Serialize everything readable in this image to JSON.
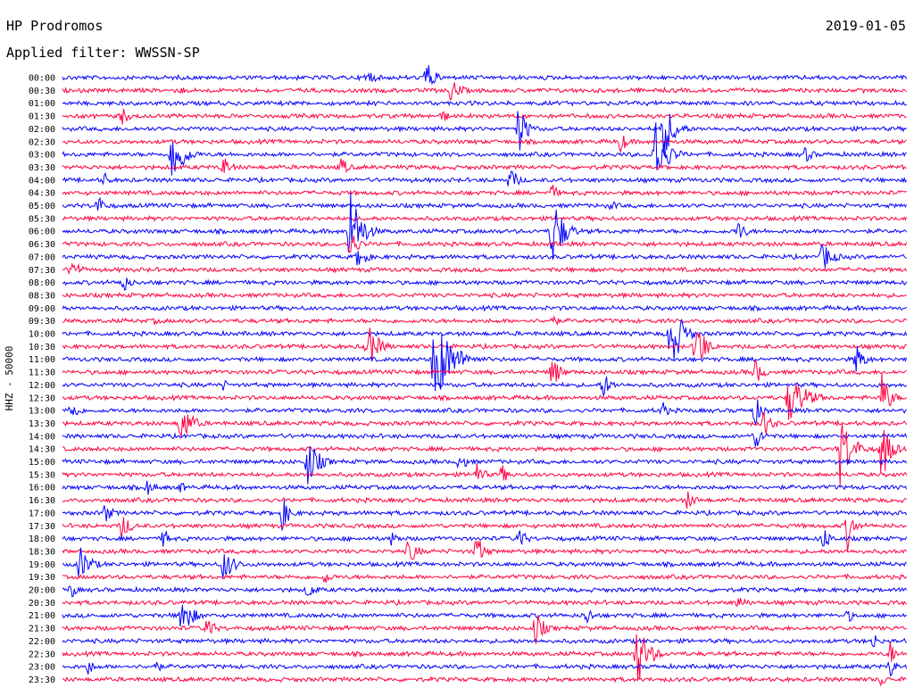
{
  "header": {
    "station": "HP Prodromos",
    "date": "2019-01-05",
    "filter_label": "Applied filter: WWSSN-SP"
  },
  "chart_data": {
    "type": "helicorder",
    "channel_label": "HHZ - 50000",
    "row_labels": [
      "00:00",
      "00:30",
      "01:00",
      "01:30",
      "02:00",
      "02:30",
      "03:00",
      "03:30",
      "04:00",
      "04:30",
      "05:00",
      "05:30",
      "06:00",
      "06:30",
      "07:00",
      "07:30",
      "08:00",
      "08:30",
      "09:00",
      "09:30",
      "10:00",
      "10:30",
      "11:00",
      "11:30",
      "12:00",
      "12:30",
      "13:00",
      "13:30",
      "14:00",
      "14:30",
      "15:00",
      "15:30",
      "16:00",
      "16:30",
      "17:00",
      "17:30",
      "18:00",
      "18:30",
      "19:00",
      "19:30",
      "20:00",
      "20:30",
      "21:00",
      "21:30",
      "22:00",
      "22:30",
      "23:00",
      "23:30"
    ],
    "trace_colors": [
      "#0000ff",
      "#ff0040"
    ],
    "events": [
      {
        "row": 0,
        "pos": 0.36,
        "amp": 12,
        "len": 0.03
      },
      {
        "row": 0,
        "pos": 0.43,
        "amp": 22,
        "len": 0.03
      },
      {
        "row": 1,
        "pos": 0.46,
        "amp": 14,
        "len": 0.04
      },
      {
        "row": 1,
        "pos": 0.14,
        "amp": 6,
        "len": 0.02
      },
      {
        "row": 3,
        "pos": 0.07,
        "amp": 12,
        "len": 0.03
      },
      {
        "row": 3,
        "pos": 0.45,
        "amp": 8,
        "len": 0.03
      },
      {
        "row": 4,
        "pos": 0.54,
        "amp": 30,
        "len": 0.03
      },
      {
        "row": 4,
        "pos": 0.71,
        "amp": 40,
        "len": 0.04
      },
      {
        "row": 5,
        "pos": 0.66,
        "amp": 14,
        "len": 0.03
      },
      {
        "row": 6,
        "pos": 0.13,
        "amp": 38,
        "len": 0.04
      },
      {
        "row": 6,
        "pos": 0.7,
        "amp": 52,
        "len": 0.04
      },
      {
        "row": 6,
        "pos": 0.88,
        "amp": 10,
        "len": 0.03
      },
      {
        "row": 7,
        "pos": 0.19,
        "amp": 14,
        "len": 0.03
      },
      {
        "row": 7,
        "pos": 0.33,
        "amp": 12,
        "len": 0.03
      },
      {
        "row": 8,
        "pos": 0.53,
        "amp": 16,
        "len": 0.03
      },
      {
        "row": 8,
        "pos": 0.05,
        "amp": 10,
        "len": 0.02
      },
      {
        "row": 9,
        "pos": 0.58,
        "amp": 12,
        "len": 0.02
      },
      {
        "row": 10,
        "pos": 0.04,
        "amp": 14,
        "len": 0.03
      },
      {
        "row": 10,
        "pos": 0.65,
        "amp": 8,
        "len": 0.02
      },
      {
        "row": 12,
        "pos": 0.34,
        "amp": 52,
        "len": 0.04
      },
      {
        "row": 12,
        "pos": 0.58,
        "amp": 44,
        "len": 0.04
      },
      {
        "row": 12,
        "pos": 0.8,
        "amp": 14,
        "len": 0.03
      },
      {
        "row": 13,
        "pos": 0.34,
        "amp": 20,
        "len": 0.03
      },
      {
        "row": 14,
        "pos": 0.35,
        "amp": 16,
        "len": 0.03
      },
      {
        "row": 14,
        "pos": 0.9,
        "amp": 18,
        "len": 0.04
      },
      {
        "row": 15,
        "pos": 0.01,
        "amp": 16,
        "len": 0.03
      },
      {
        "row": 16,
        "pos": 0.07,
        "amp": 14,
        "len": 0.03
      },
      {
        "row": 19,
        "pos": 0.58,
        "amp": 10,
        "len": 0.02
      },
      {
        "row": 19,
        "pos": 0.11,
        "amp": 6,
        "len": 0.02
      },
      {
        "row": 20,
        "pos": 0.72,
        "amp": 48,
        "len": 0.04
      },
      {
        "row": 21,
        "pos": 0.36,
        "amp": 30,
        "len": 0.04
      },
      {
        "row": 21,
        "pos": 0.75,
        "amp": 40,
        "len": 0.03
      },
      {
        "row": 22,
        "pos": 0.44,
        "amp": 56,
        "len": 0.06
      },
      {
        "row": 22,
        "pos": 0.94,
        "amp": 20,
        "len": 0.03
      },
      {
        "row": 23,
        "pos": 0.58,
        "amp": 20,
        "len": 0.03
      },
      {
        "row": 23,
        "pos": 0.82,
        "amp": 16,
        "len": 0.03
      },
      {
        "row": 24,
        "pos": 0.64,
        "amp": 16,
        "len": 0.03
      },
      {
        "row": 24,
        "pos": 0.19,
        "amp": 8,
        "len": 0.02
      },
      {
        "row": 25,
        "pos": 0.86,
        "amp": 30,
        "len": 0.06
      },
      {
        "row": 25,
        "pos": 0.97,
        "amp": 30,
        "len": 0.03
      },
      {
        "row": 26,
        "pos": 0.01,
        "amp": 14,
        "len": 0.03
      },
      {
        "row": 26,
        "pos": 0.71,
        "amp": 14,
        "len": 0.02
      },
      {
        "row": 26,
        "pos": 0.82,
        "amp": 18,
        "len": 0.03
      },
      {
        "row": 27,
        "pos": 0.14,
        "amp": 26,
        "len": 0.04
      },
      {
        "row": 27,
        "pos": 0.83,
        "amp": 18,
        "len": 0.03
      },
      {
        "row": 28,
        "pos": 0.82,
        "amp": 16,
        "len": 0.03
      },
      {
        "row": 29,
        "pos": 0.92,
        "amp": 48,
        "len": 0.04
      },
      {
        "row": 29,
        "pos": 0.97,
        "amp": 40,
        "len": 0.03
      },
      {
        "row": 30,
        "pos": 0.29,
        "amp": 30,
        "len": 0.04
      },
      {
        "row": 30,
        "pos": 0.47,
        "amp": 12,
        "len": 0.03
      },
      {
        "row": 31,
        "pos": 0.49,
        "amp": 14,
        "len": 0.03
      },
      {
        "row": 31,
        "pos": 0.52,
        "amp": 12,
        "len": 0.03
      },
      {
        "row": 32,
        "pos": 0.1,
        "amp": 10,
        "len": 0.03
      },
      {
        "row": 32,
        "pos": 0.14,
        "amp": 8,
        "len": 0.02
      },
      {
        "row": 33,
        "pos": 0.74,
        "amp": 12,
        "len": 0.03
      },
      {
        "row": 34,
        "pos": 0.26,
        "amp": 20,
        "len": 0.03
      },
      {
        "row": 34,
        "pos": 0.05,
        "amp": 12,
        "len": 0.03
      },
      {
        "row": 35,
        "pos": 0.07,
        "amp": 18,
        "len": 0.03
      },
      {
        "row": 35,
        "pos": 0.93,
        "amp": 30,
        "len": 0.02
      },
      {
        "row": 36,
        "pos": 0.12,
        "amp": 14,
        "len": 0.02
      },
      {
        "row": 36,
        "pos": 0.39,
        "amp": 10,
        "len": 0.03
      },
      {
        "row": 36,
        "pos": 0.54,
        "amp": 14,
        "len": 0.03
      },
      {
        "row": 36,
        "pos": 0.9,
        "amp": 16,
        "len": 0.03
      },
      {
        "row": 37,
        "pos": 0.41,
        "amp": 18,
        "len": 0.03
      },
      {
        "row": 37,
        "pos": 0.49,
        "amp": 20,
        "len": 0.03
      },
      {
        "row": 38,
        "pos": 0.02,
        "amp": 22,
        "len": 0.04
      },
      {
        "row": 38,
        "pos": 0.19,
        "amp": 20,
        "len": 0.04
      },
      {
        "row": 39,
        "pos": 0.31,
        "amp": 10,
        "len": 0.03
      },
      {
        "row": 40,
        "pos": 0.01,
        "amp": 12,
        "len": 0.02
      },
      {
        "row": 40,
        "pos": 0.29,
        "amp": 12,
        "len": 0.03
      },
      {
        "row": 41,
        "pos": 0.8,
        "amp": 10,
        "len": 0.03
      },
      {
        "row": 42,
        "pos": 0.14,
        "amp": 26,
        "len": 0.04
      },
      {
        "row": 42,
        "pos": 0.62,
        "amp": 12,
        "len": 0.03
      },
      {
        "row": 42,
        "pos": 0.93,
        "amp": 10,
        "len": 0.02
      },
      {
        "row": 43,
        "pos": 0.17,
        "amp": 16,
        "len": 0.03
      },
      {
        "row": 43,
        "pos": 0.56,
        "amp": 22,
        "len": 0.03
      },
      {
        "row": 44,
        "pos": 0.96,
        "amp": 12,
        "len": 0.02
      },
      {
        "row": 45,
        "pos": 0.68,
        "amp": 40,
        "len": 0.04
      },
      {
        "row": 45,
        "pos": 0.98,
        "amp": 16,
        "len": 0.02
      },
      {
        "row": 46,
        "pos": 0.03,
        "amp": 10,
        "len": 0.03
      },
      {
        "row": 46,
        "pos": 0.11,
        "amp": 10,
        "len": 0.02
      },
      {
        "row": 46,
        "pos": 0.98,
        "amp": 14,
        "len": 0.02
      },
      {
        "row": 47,
        "pos": 0.97,
        "amp": 10,
        "len": 0.02
      }
    ]
  }
}
